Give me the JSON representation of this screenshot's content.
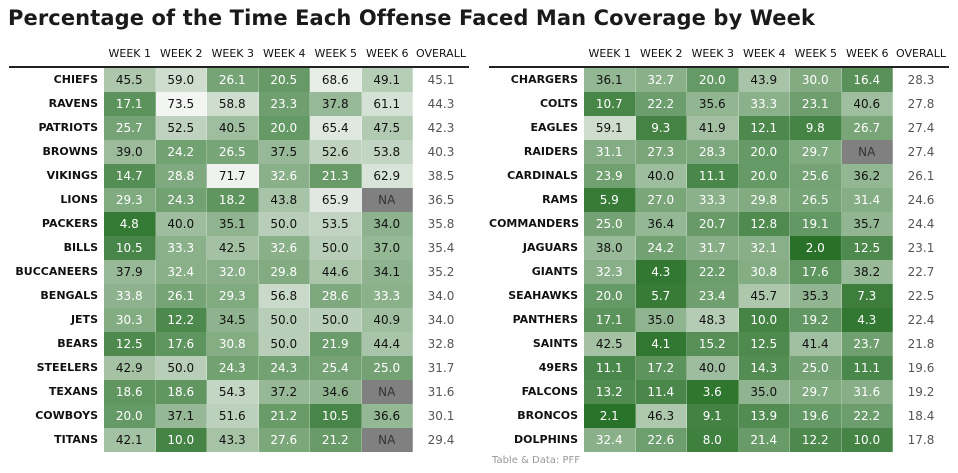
{
  "title": "Percentage of the Time Each Offense Faced Man Coverage by Week",
  "caption": "Table & Data: PFF",
  "colors": {
    "low": "#1f6b1f",
    "high": "#f7f7f7",
    "na": "#808080",
    "text_dark": "#111111",
    "text_light": "#ffffff"
  },
  "columns": [
    "WEEK 1",
    "WEEK 2",
    "WEEK 3",
    "WEEK 4",
    "WEEK 5",
    "WEEK 6",
    "OVERALL"
  ],
  "chart_data": [
    {
      "type": "table",
      "columns": [
        "WEEK 1",
        "WEEK 2",
        "WEEK 3",
        "WEEK 4",
        "WEEK 5",
        "WEEK 6",
        "OVERALL"
      ],
      "rows": [
        {
          "team": "CHIEFS",
          "values": [
            "45.5",
            "59.0",
            "26.1",
            "20.5",
            "68.6",
            "49.1"
          ],
          "overall": "45.1"
        },
        {
          "team": "RAVENS",
          "values": [
            "17.1",
            "73.5",
            "58.8",
            "23.3",
            "37.8",
            "61.1"
          ],
          "overall": "44.3"
        },
        {
          "team": "PATRIOTS",
          "values": [
            "25.7",
            "52.5",
            "40.5",
            "20.0",
            "65.4",
            "47.5"
          ],
          "overall": "42.3"
        },
        {
          "team": "BROWNS",
          "values": [
            "39.0",
            "24.2",
            "26.5",
            "37.5",
            "52.6",
            "53.8"
          ],
          "overall": "40.3"
        },
        {
          "team": "VIKINGS",
          "values": [
            "14.7",
            "28.8",
            "71.7",
            "32.6",
            "21.3",
            "62.9"
          ],
          "overall": "38.5"
        },
        {
          "team": "LIONS",
          "values": [
            "29.3",
            "24.3",
            "18.2",
            "43.8",
            "65.9",
            "NA"
          ],
          "overall": "36.5"
        },
        {
          "team": "PACKERS",
          "values": [
            "4.8",
            "40.0",
            "35.1",
            "50.0",
            "53.5",
            "34.0"
          ],
          "overall": "35.8"
        },
        {
          "team": "BILLS",
          "values": [
            "10.5",
            "33.3",
            "42.5",
            "32.6",
            "50.0",
            "37.0"
          ],
          "overall": "35.4"
        },
        {
          "team": "BUCCANEERS",
          "values": [
            "37.9",
            "32.4",
            "32.0",
            "29.8",
            "44.6",
            "34.1"
          ],
          "overall": "35.2"
        },
        {
          "team": "BENGALS",
          "values": [
            "33.8",
            "26.1",
            "29.3",
            "56.8",
            "28.6",
            "33.3"
          ],
          "overall": "34.0"
        },
        {
          "team": "JETS",
          "values": [
            "30.3",
            "12.2",
            "34.5",
            "50.0",
            "50.0",
            "40.9"
          ],
          "overall": "34.0"
        },
        {
          "team": "BEARS",
          "values": [
            "12.5",
            "17.6",
            "30.8",
            "50.0",
            "21.9",
            "44.4"
          ],
          "overall": "32.8"
        },
        {
          "team": "STEELERS",
          "values": [
            "42.9",
            "50.0",
            "24.3",
            "24.3",
            "25.4",
            "25.0"
          ],
          "overall": "31.7"
        },
        {
          "team": "TEXANS",
          "values": [
            "18.6",
            "18.6",
            "54.3",
            "37.2",
            "34.6",
            "NA"
          ],
          "overall": "31.6"
        },
        {
          "team": "COWBOYS",
          "values": [
            "20.0",
            "37.1",
            "51.6",
            "21.2",
            "10.5",
            "36.6"
          ],
          "overall": "30.1"
        },
        {
          "team": "TITANS",
          "values": [
            "42.1",
            "10.0",
            "43.3",
            "27.6",
            "21.2",
            "NA"
          ],
          "overall": "29.4"
        }
      ]
    },
    {
      "type": "table",
      "columns": [
        "WEEK 1",
        "WEEK 2",
        "WEEK 3",
        "WEEK 4",
        "WEEK 5",
        "WEEK 6",
        "OVERALL"
      ],
      "rows": [
        {
          "team": "CHARGERS",
          "values": [
            "36.1",
            "32.7",
            "20.0",
            "43.9",
            "30.0",
            "16.4"
          ],
          "overall": "28.3"
        },
        {
          "team": "COLTS",
          "values": [
            "10.7",
            "22.2",
            "35.6",
            "33.3",
            "23.1",
            "40.6"
          ],
          "overall": "27.8"
        },
        {
          "team": "EAGLES",
          "values": [
            "59.1",
            "9.3",
            "41.9",
            "12.1",
            "9.8",
            "26.7"
          ],
          "overall": "27.4"
        },
        {
          "team": "RAIDERS",
          "values": [
            "31.1",
            "27.3",
            "28.3",
            "20.0",
            "29.7",
            "NA"
          ],
          "overall": "27.4"
        },
        {
          "team": "CARDINALS",
          "values": [
            "23.9",
            "40.0",
            "11.1",
            "20.0",
            "25.6",
            "36.2"
          ],
          "overall": "26.1"
        },
        {
          "team": "RAMS",
          "values": [
            "5.9",
            "27.0",
            "33.3",
            "29.8",
            "26.5",
            "31.4"
          ],
          "overall": "24.6"
        },
        {
          "team": "COMMANDERS",
          "values": [
            "25.0",
            "36.4",
            "20.7",
            "12.8",
            "19.1",
            "35.7"
          ],
          "overall": "24.4"
        },
        {
          "team": "JAGUARS",
          "values": [
            "38.0",
            "24.2",
            "31.7",
            "32.1",
            "2.0",
            "12.5"
          ],
          "overall": "23.1"
        },
        {
          "team": "GIANTS",
          "values": [
            "32.3",
            "4.3",
            "22.2",
            "30.8",
            "17.6",
            "38.2"
          ],
          "overall": "22.7"
        },
        {
          "team": "SEAHAWKS",
          "values": [
            "20.0",
            "5.7",
            "23.4",
            "45.7",
            "35.3",
            "7.3"
          ],
          "overall": "22.5"
        },
        {
          "team": "PANTHERS",
          "values": [
            "17.1",
            "35.0",
            "48.3",
            "10.0",
            "19.2",
            "4.3"
          ],
          "overall": "22.4"
        },
        {
          "team": "SAINTS",
          "values": [
            "42.5",
            "4.1",
            "15.2",
            "12.5",
            "41.4",
            "23.7"
          ],
          "overall": "21.8"
        },
        {
          "team": "49ERS",
          "values": [
            "11.1",
            "17.2",
            "40.0",
            "14.3",
            "25.0",
            "11.1"
          ],
          "overall": "19.6"
        },
        {
          "team": "FALCONS",
          "values": [
            "13.2",
            "11.4",
            "3.6",
            "35.0",
            "29.7",
            "31.6"
          ],
          "overall": "19.2"
        },
        {
          "team": "BRONCOS",
          "values": [
            "2.1",
            "46.3",
            "9.1",
            "13.9",
            "19.6",
            "22.2"
          ],
          "overall": "18.4"
        },
        {
          "team": "DOLPHINS",
          "values": [
            "32.4",
            "22.6",
            "8.0",
            "21.4",
            "12.2",
            "10.0"
          ],
          "overall": "17.8"
        }
      ]
    }
  ]
}
